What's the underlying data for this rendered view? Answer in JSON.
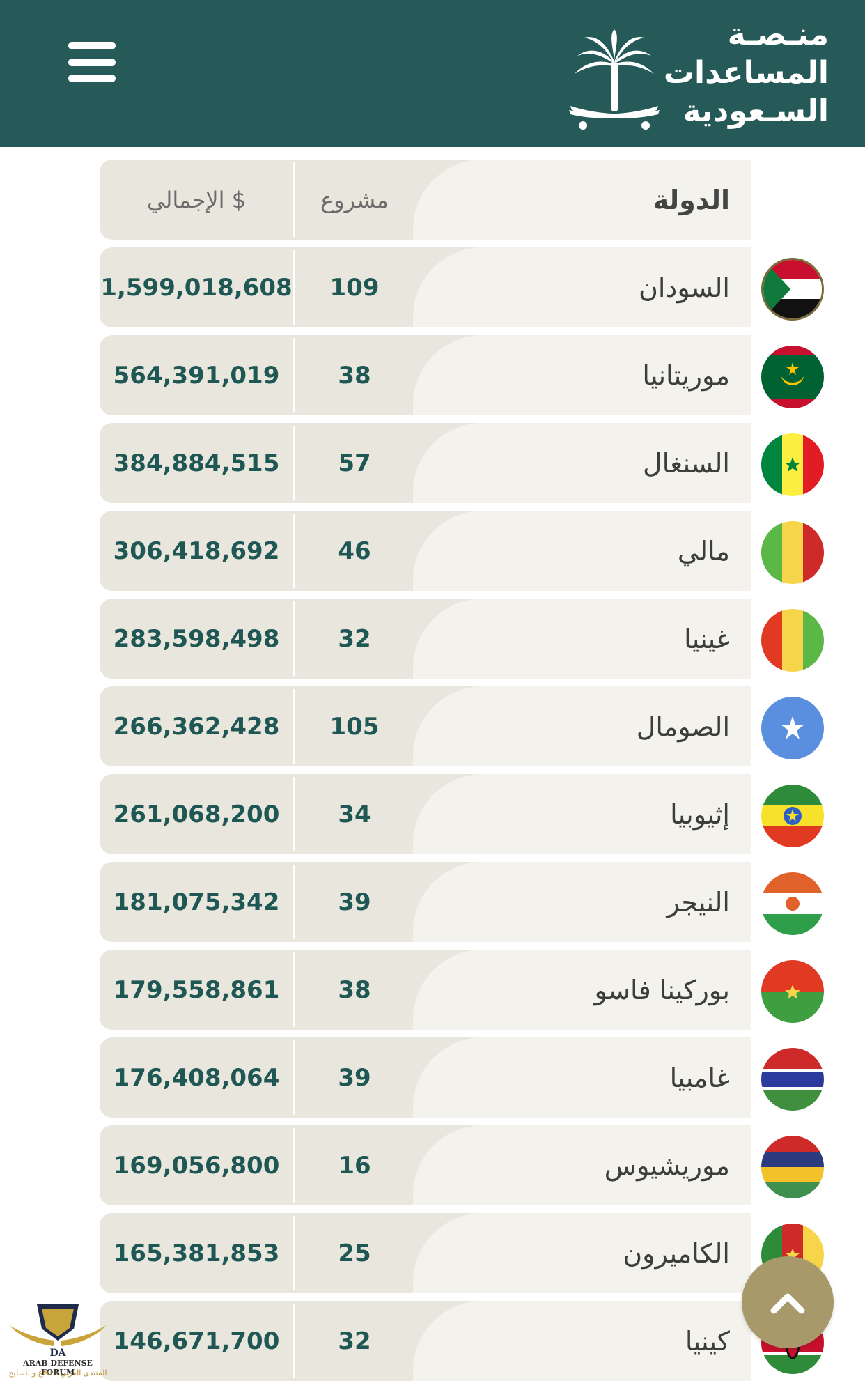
{
  "header": {
    "logo_lines": [
      "منـصـة",
      "المساعدات",
      "السـعودية"
    ],
    "menu_icon": "hamburger-icon",
    "emblem_icon": "palm-swords-icon"
  },
  "table": {
    "columns": {
      "country": "الدولة",
      "projects": "مشروع",
      "total": "الإجمالي $"
    },
    "rows": [
      {
        "country": "السودان",
        "projects": "109",
        "total": "1,599,018,608",
        "flag": "sudan-flag-icon"
      },
      {
        "country": "موريتانيا",
        "projects": "38",
        "total": "564,391,019",
        "flag": "mauritania-flag-icon"
      },
      {
        "country": "السنغال",
        "projects": "57",
        "total": "384,884,515",
        "flag": "senegal-flag-icon"
      },
      {
        "country": "مالي",
        "projects": "46",
        "total": "306,418,692",
        "flag": "mali-flag-icon"
      },
      {
        "country": "غينيا",
        "projects": "32",
        "total": "283,598,498",
        "flag": "guinea-flag-icon"
      },
      {
        "country": "الصومال",
        "projects": "105",
        "total": "266,362,428",
        "flag": "somalia-flag-icon"
      },
      {
        "country": "إثيوبيا",
        "projects": "34",
        "total": "261,068,200",
        "flag": "ethiopia-flag-icon"
      },
      {
        "country": "النيجر",
        "projects": "39",
        "total": "181,075,342",
        "flag": "niger-flag-icon"
      },
      {
        "country": "بوركينا فاسو",
        "projects": "38",
        "total": "179,558,861",
        "flag": "burkina-faso-flag-icon"
      },
      {
        "country": "غامبيا",
        "projects": "39",
        "total": "176,408,064",
        "flag": "gambia-flag-icon"
      },
      {
        "country": "موريشيوس",
        "projects": "16",
        "total": "169,056,800",
        "flag": "mauritius-flag-icon"
      },
      {
        "country": "الكاميرون",
        "projects": "25",
        "total": "165,381,853",
        "flag": "cameroon-flag-icon"
      },
      {
        "country": "كينيا",
        "projects": "32",
        "total": "146,671,700",
        "flag": "kenya-flag-icon"
      }
    ]
  },
  "scroll_top_icon": "chevron-up-icon",
  "watermark": {
    "badge": "DA",
    "line1": "ARAB DEFENSE FORUM",
    "line2": "المنتدى العربي للدفاع والتسليح"
  },
  "colors": {
    "header_bg": "#255a58",
    "row_bg": "#e9e7dd",
    "row_bg_right": "#f3f2ec",
    "number_text": "#1f5755",
    "scroll_button": "#a8996a"
  }
}
